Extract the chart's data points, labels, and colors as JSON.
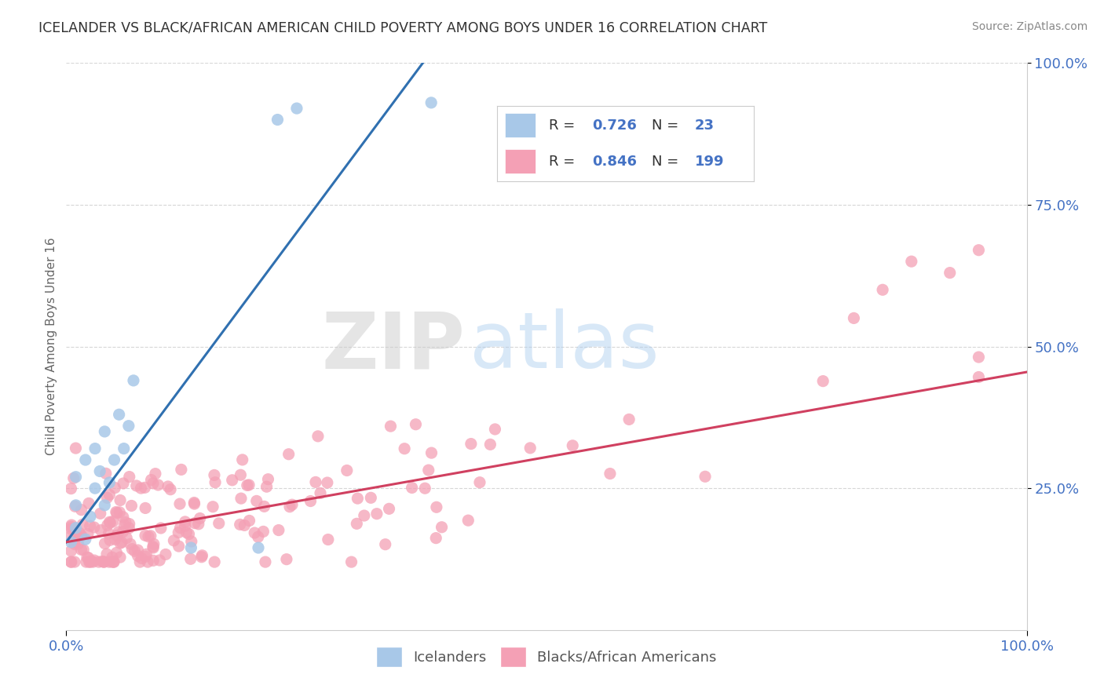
{
  "title": "ICELANDER VS BLACK/AFRICAN AMERICAN CHILD POVERTY AMONG BOYS UNDER 16 CORRELATION CHART",
  "source": "Source: ZipAtlas.com",
  "ylabel": "Child Poverty Among Boys Under 16",
  "watermark_zip": "ZIP",
  "watermark_atlas": "atlas",
  "xlim": [
    0,
    1
  ],
  "ylim": [
    0,
    1
  ],
  "color_blue_scatter": "#a8c8e8",
  "color_pink_scatter": "#f4a0b5",
  "color_blue_line": "#3070b0",
  "color_pink_line": "#d04060",
  "color_text_blue": "#4472c4",
  "color_tick": "#4472c4",
  "background": "#ffffff",
  "grid_color": "#cccccc",
  "legend_r1": "0.726",
  "legend_n1": "23",
  "legend_r2": "0.846",
  "legend_n2": "199",
  "ice_trendline_x0": 0.0,
  "ice_trendline_y0": 0.155,
  "ice_trendline_x1": 0.38,
  "ice_trendline_y1": 1.02,
  "black_trendline_x0": 0.0,
  "black_trendline_y0": 0.155,
  "black_trendline_x1": 1.0,
  "black_trendline_y1": 0.455
}
